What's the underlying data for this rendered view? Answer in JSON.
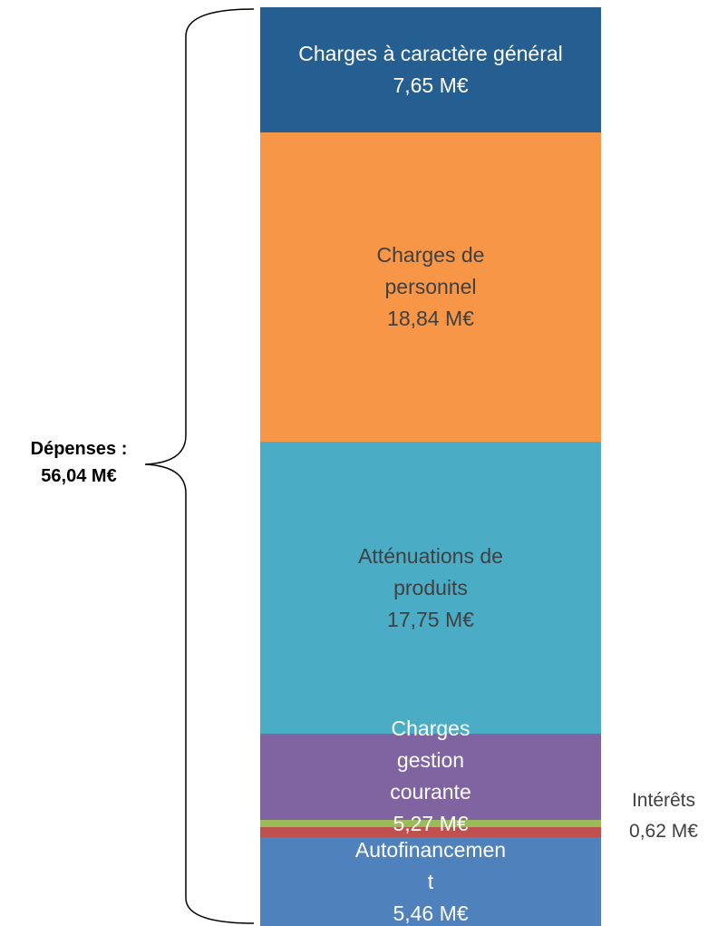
{
  "chart_data": {
    "type": "stacked-column",
    "annotation": "Dépenses : 56,04 M€",
    "series": [
      {
        "name": "Charges à caractère général",
        "color": "#255e91",
        "values": [
          7.65
        ],
        "value_labels": [
          "7,65 M€"
        ]
      },
      {
        "name": "Charges de personnel",
        "color": "#f79646",
        "values": [
          18.84
        ],
        "value_labels": [
          "18,84 M€"
        ]
      },
      {
        "name": "Atténuations de produits",
        "color": "#4bacc6",
        "values": [
          17.75
        ],
        "value_labels": [
          "17,75 M€"
        ]
      },
      {
        "name": "Charges gestion courante",
        "color": "#8064a2",
        "values": [
          5.27
        ],
        "value_labels": [
          "5,27 M€"
        ]
      },
      {
        "color": "#9bbb59",
        "values": [
          0.45
        ]
      },
      {
        "name": "Intérêts",
        "color": "#c0504d",
        "values": [
          0.62
        ],
        "value_labels": [
          "0,62 M€"
        ]
      },
      {
        "name": "Autofinancement",
        "color": "#4f81bd",
        "values": [
          5.46
        ],
        "value_labels": [
          "5,46 M€"
        ]
      }
    ]
  }
}
